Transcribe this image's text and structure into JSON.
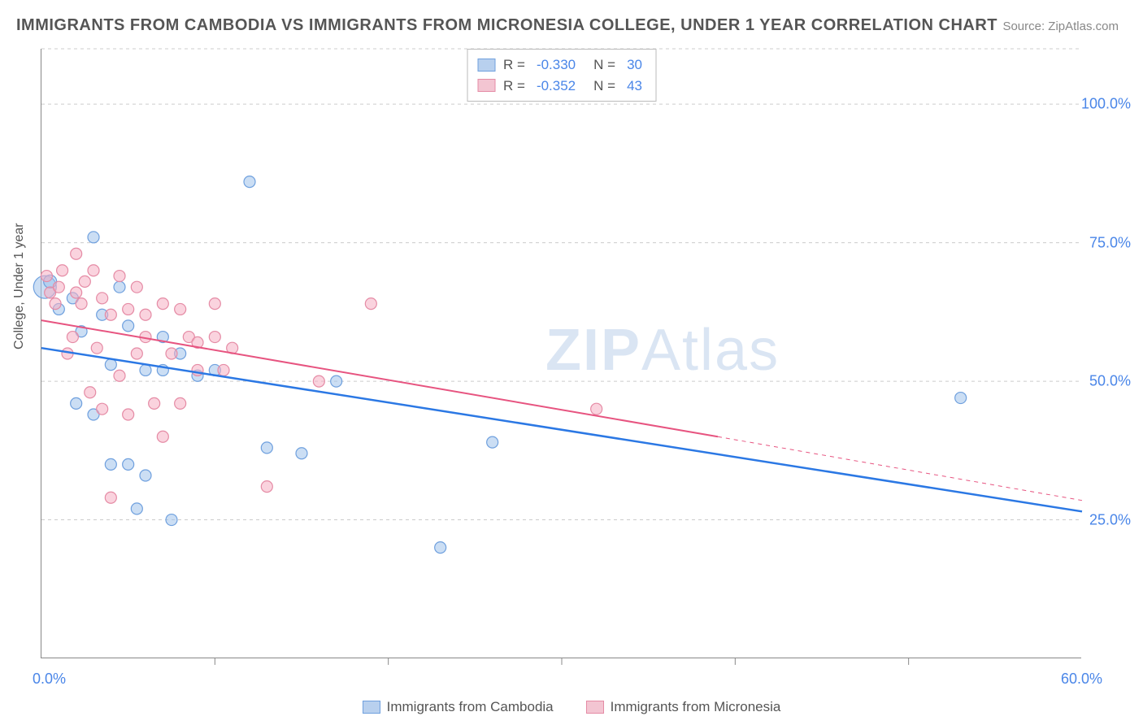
{
  "title": "IMMIGRANTS FROM CAMBODIA VS IMMIGRANTS FROM MICRONESIA COLLEGE, UNDER 1 YEAR CORRELATION CHART",
  "source": "Source: ZipAtlas.com",
  "watermark": {
    "bold": "ZIP",
    "light": "Atlas"
  },
  "y_axis_title": "College, Under 1 year",
  "chart": {
    "type": "scatter",
    "xlim": [
      0,
      60
    ],
    "ylim": [
      0,
      110
    ],
    "x_ticks": [
      0,
      10,
      20,
      30,
      40,
      50,
      60
    ],
    "x_tick_labels_visible": {
      "0": "0.0%",
      "60": "60.0%"
    },
    "y_ticks": [
      25,
      50,
      75,
      100
    ],
    "y_tick_labels": {
      "25": "25.0%",
      "50": "50.0%",
      "75": "75.0%",
      "100": "100.0%"
    },
    "grid_color": "#cccccc",
    "background_color": "#ffffff",
    "axis_label_color": "#4a86e8",
    "axis_label_fontsize": 18
  },
  "series": [
    {
      "id": "cambodia",
      "label": "Immigrants from Cambodia",
      "marker_fill": "rgba(160, 195, 235, 0.55)",
      "marker_stroke": "#6fa0de",
      "swatch_fill": "#b8d0ee",
      "swatch_border": "#6fa0de",
      "line_color": "#2b78e4",
      "line_width": 2.5,
      "r_value": "-0.330",
      "n_value": "30",
      "trend": {
        "x1": 0,
        "y1": 56,
        "x2": 60,
        "y2": 26.5
      },
      "points": [
        {
          "x": 0.2,
          "y": 67,
          "r": 14
        },
        {
          "x": 0.5,
          "y": 68,
          "r": 8
        },
        {
          "x": 1.0,
          "y": 63,
          "r": 7
        },
        {
          "x": 1.8,
          "y": 65,
          "r": 7
        },
        {
          "x": 2.3,
          "y": 59,
          "r": 7
        },
        {
          "x": 3.0,
          "y": 76,
          "r": 7
        },
        {
          "x": 2.0,
          "y": 46,
          "r": 7
        },
        {
          "x": 3.0,
          "y": 44,
          "r": 7
        },
        {
          "x": 3.5,
          "y": 62,
          "r": 7
        },
        {
          "x": 4.0,
          "y": 53,
          "r": 7
        },
        {
          "x": 4.0,
          "y": 35,
          "r": 7
        },
        {
          "x": 5.0,
          "y": 60,
          "r": 7
        },
        {
          "x": 5.0,
          "y": 35,
          "r": 7
        },
        {
          "x": 5.5,
          "y": 27,
          "r": 7
        },
        {
          "x": 6.0,
          "y": 52,
          "r": 7
        },
        {
          "x": 6.0,
          "y": 33,
          "r": 7
        },
        {
          "x": 7.0,
          "y": 58,
          "r": 7
        },
        {
          "x": 7.0,
          "y": 52,
          "r": 7
        },
        {
          "x": 7.5,
          "y": 25,
          "r": 7
        },
        {
          "x": 8.0,
          "y": 55,
          "r": 7
        },
        {
          "x": 9.0,
          "y": 51,
          "r": 7
        },
        {
          "x": 10.0,
          "y": 52,
          "r": 7
        },
        {
          "x": 12.0,
          "y": 86,
          "r": 7
        },
        {
          "x": 13.0,
          "y": 38,
          "r": 7
        },
        {
          "x": 15.0,
          "y": 37,
          "r": 7
        },
        {
          "x": 17.0,
          "y": 50,
          "r": 7
        },
        {
          "x": 23.0,
          "y": 20,
          "r": 7
        },
        {
          "x": 26.0,
          "y": 39,
          "r": 7
        },
        {
          "x": 53.0,
          "y": 47,
          "r": 7
        },
        {
          "x": 4.5,
          "y": 67,
          "r": 7
        }
      ]
    },
    {
      "id": "micronesia",
      "label": "Immigrants from Micronesia",
      "marker_fill": "rgba(245, 175, 195, 0.55)",
      "marker_stroke": "#e58ba5",
      "swatch_fill": "#f3c5d2",
      "swatch_border": "#e58ba5",
      "line_color": "#e75480",
      "line_width": 2,
      "r_value": "-0.352",
      "n_value": "43",
      "trend": {
        "x1": 0,
        "y1": 61,
        "x2": 39,
        "y2": 40
      },
      "trend_ext": {
        "x1": 39,
        "y1": 40,
        "x2": 60,
        "y2": 28.5
      },
      "points": [
        {
          "x": 0.3,
          "y": 69,
          "r": 7
        },
        {
          "x": 0.5,
          "y": 66,
          "r": 7
        },
        {
          "x": 0.8,
          "y": 64,
          "r": 7
        },
        {
          "x": 1.0,
          "y": 67,
          "r": 7
        },
        {
          "x": 1.2,
          "y": 70,
          "r": 7
        },
        {
          "x": 1.5,
          "y": 55,
          "r": 7
        },
        {
          "x": 1.8,
          "y": 58,
          "r": 7
        },
        {
          "x": 2.0,
          "y": 73,
          "r": 7
        },
        {
          "x": 2.0,
          "y": 66,
          "r": 7
        },
        {
          "x": 2.3,
          "y": 64,
          "r": 7
        },
        {
          "x": 2.5,
          "y": 68,
          "r": 7
        },
        {
          "x": 2.8,
          "y": 48,
          "r": 7
        },
        {
          "x": 3.0,
          "y": 70,
          "r": 7
        },
        {
          "x": 3.2,
          "y": 56,
          "r": 7
        },
        {
          "x": 3.5,
          "y": 65,
          "r": 7
        },
        {
          "x": 3.5,
          "y": 45,
          "r": 7
        },
        {
          "x": 4.0,
          "y": 62,
          "r": 7
        },
        {
          "x": 4.0,
          "y": 29,
          "r": 7
        },
        {
          "x": 4.5,
          "y": 69,
          "r": 7
        },
        {
          "x": 4.5,
          "y": 51,
          "r": 7
        },
        {
          "x": 5.0,
          "y": 63,
          "r": 7
        },
        {
          "x": 5.0,
          "y": 44,
          "r": 7
        },
        {
          "x": 5.5,
          "y": 67,
          "r": 7
        },
        {
          "x": 5.5,
          "y": 55,
          "r": 7
        },
        {
          "x": 6.0,
          "y": 58,
          "r": 7
        },
        {
          "x": 6.5,
          "y": 46,
          "r": 7
        },
        {
          "x": 7.0,
          "y": 64,
          "r": 7
        },
        {
          "x": 7.0,
          "y": 40,
          "r": 7
        },
        {
          "x": 7.5,
          "y": 55,
          "r": 7
        },
        {
          "x": 8.0,
          "y": 63,
          "r": 7
        },
        {
          "x": 8.0,
          "y": 46,
          "r": 7
        },
        {
          "x": 8.5,
          "y": 58,
          "r": 7
        },
        {
          "x": 9.0,
          "y": 52,
          "r": 7
        },
        {
          "x": 9.0,
          "y": 57,
          "r": 7
        },
        {
          "x": 10.0,
          "y": 64,
          "r": 7
        },
        {
          "x": 10.0,
          "y": 58,
          "r": 7
        },
        {
          "x": 10.5,
          "y": 52,
          "r": 7
        },
        {
          "x": 11.0,
          "y": 56,
          "r": 7
        },
        {
          "x": 13.0,
          "y": 31,
          "r": 7
        },
        {
          "x": 16.0,
          "y": 50,
          "r": 7
        },
        {
          "x": 19.0,
          "y": 64,
          "r": 7
        },
        {
          "x": 32.0,
          "y": 45,
          "r": 7
        },
        {
          "x": 6.0,
          "y": 62,
          "r": 7
        }
      ]
    }
  ],
  "stat_legend": {
    "r_label": "R =",
    "n_label": "N ="
  }
}
